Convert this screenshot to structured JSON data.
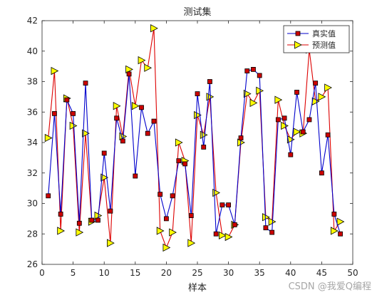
{
  "chart_data": {
    "type": "line",
    "title": "测试集",
    "xlabel": "样本",
    "ylabel": "",
    "xlim": [
      0,
      50
    ],
    "ylim": [
      26,
      42
    ],
    "xticks": [
      0,
      5,
      10,
      15,
      20,
      25,
      30,
      35,
      40,
      45,
      50
    ],
    "yticks": [
      26,
      28,
      30,
      32,
      34,
      36,
      38,
      40,
      42
    ],
    "grid": false,
    "legend_position": "top-right",
    "x": [
      1,
      2,
      3,
      4,
      5,
      6,
      7,
      8,
      9,
      10,
      11,
      12,
      13,
      14,
      15,
      16,
      17,
      18,
      19,
      20,
      21,
      22,
      23,
      24,
      25,
      26,
      27,
      28,
      29,
      30,
      31,
      32,
      33,
      34,
      35,
      36,
      37,
      38,
      39,
      40,
      41,
      42,
      43,
      44,
      45,
      46,
      47,
      48
    ],
    "series": [
      {
        "name": "真实值",
        "color": "#0000cc",
        "marker": "square",
        "marker_fill": "#cc0000",
        "values": [
          30.5,
          35.9,
          29.3,
          36.8,
          35.9,
          28.7,
          37.9,
          28.9,
          28.9,
          33.3,
          29.5,
          35.6,
          34.1,
          38.5,
          31.8,
          36.3,
          34.6,
          35.4,
          30.6,
          29.0,
          30.5,
          32.8,
          32.6,
          29.2,
          37.2,
          33.7,
          38.0,
          28.0,
          29.9,
          29.9,
          28.6,
          34.3,
          38.7,
          38.8,
          38.4,
          28.4,
          28.1,
          35.5,
          35.6,
          33.2,
          37.3,
          34.7,
          35.5,
          37.9,
          32.0,
          34.5,
          29.3,
          28.0
        ]
      },
      {
        "name": "预测值",
        "color": "#dd0000",
        "marker": "triangle-right",
        "marker_fill": "#ffff00",
        "values": [
          34.3,
          38.7,
          28.2,
          36.9,
          35.1,
          28.1,
          34.6,
          28.8,
          29.2,
          31.7,
          27.4,
          36.4,
          34.4,
          38.8,
          36.4,
          39.4,
          38.9,
          41.5,
          28.2,
          27.1,
          28.1,
          34.0,
          32.8,
          27.4,
          35.8,
          34.5,
          37.0,
          30.7,
          27.9,
          27.8,
          28.6,
          34.0,
          37.2,
          36.6,
          37.4,
          29.1,
          28.8,
          36.8,
          35.1,
          34.2,
          34.7,
          34.6,
          40.1,
          36.7,
          37.0,
          37.6,
          28.2,
          28.8
        ]
      }
    ]
  },
  "watermark": "CSDN @我爱Q编程"
}
